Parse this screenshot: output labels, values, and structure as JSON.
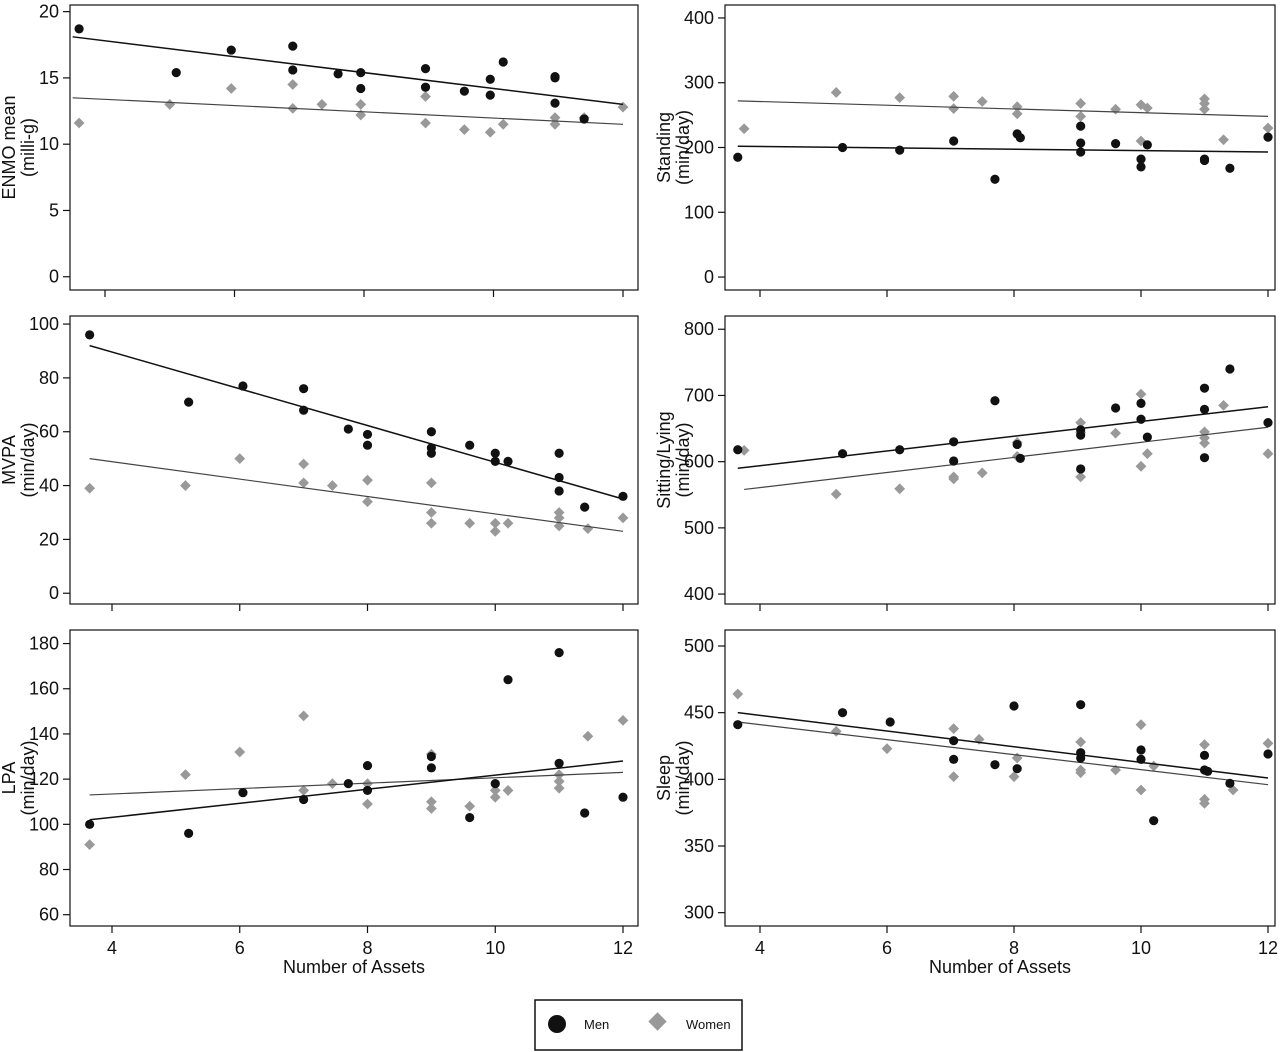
{
  "legend": {
    "items": [
      {
        "label": "Men",
        "color": "#111111",
        "marker": "circle"
      },
      {
        "label": "Women",
        "color": "#999999",
        "marker": "diamond"
      }
    ]
  },
  "chart_data": [
    {
      "type": "scatter",
      "ylabel": [
        "ENMO mean",
        "(milli-g)"
      ],
      "xlabel": "",
      "xlim": [
        3.5,
        12.1
      ],
      "ylim": [
        -1,
        20.5
      ],
      "x_ticks": [
        4,
        6,
        8,
        10,
        12
      ],
      "show_x_tick_labels": false,
      "y_ticks": [
        0,
        5,
        10,
        15,
        20
      ],
      "series": [
        {
          "name": "Men",
          "color": "#111111",
          "marker": "circle",
          "x": [
            3.6,
            5.1,
            5.95,
            6.9,
            6.9,
            7.6,
            7.95,
            7.95,
            8.95,
            8.95,
            9.55,
            9.95,
            9.95,
            10.15,
            10.95,
            10.95,
            10.95,
            11.4
          ],
          "y": [
            18.7,
            15.4,
            17.1,
            17.4,
            15.6,
            15.3,
            15.4,
            14.2,
            15.7,
            14.3,
            14.0,
            14.9,
            13.7,
            16.2,
            15.0,
            15.1,
            13.1,
            11.9
          ],
          "trend": [
            [
              3.5,
              18.1
            ],
            [
              12.0,
              13.0
            ]
          ]
        },
        {
          "name": "Women",
          "color": "#999999",
          "marker": "diamond",
          "x": [
            3.6,
            5.0,
            5.95,
            6.9,
            6.9,
            7.35,
            7.95,
            7.95,
            8.95,
            8.95,
            9.55,
            9.95,
            10.15,
            10.95,
            10.95,
            11.4,
            12.0
          ],
          "y": [
            11.6,
            13.0,
            14.2,
            14.5,
            12.7,
            13.0,
            13.0,
            12.2,
            13.6,
            11.6,
            11.1,
            10.9,
            11.5,
            11.5,
            12.0,
            12.0,
            12.8
          ],
          "trend": [
            [
              3.5,
              13.5
            ],
            [
              12.0,
              11.5
            ]
          ]
        }
      ]
    },
    {
      "type": "scatter",
      "ylabel": [
        "Standing",
        "(min/day)"
      ],
      "xlabel": "",
      "xlim": [
        3.5,
        12.1
      ],
      "ylim": [
        -20,
        420
      ],
      "x_ticks": [
        4,
        6,
        8,
        10,
        12
      ],
      "show_x_tick_labels": false,
      "y_ticks": [
        0,
        100,
        200,
        300,
        400
      ],
      "series": [
        {
          "name": "Men",
          "color": "#111111",
          "marker": "circle",
          "x": [
            3.65,
            5.3,
            6.2,
            7.05,
            7.7,
            8.05,
            8.1,
            9.05,
            9.05,
            9.05,
            9.6,
            10.0,
            10.0,
            10.1,
            11.0,
            11.0,
            11.4,
            12.0
          ],
          "y": [
            185,
            200,
            196,
            210,
            151,
            221,
            215,
            233,
            207,
            193,
            206,
            182,
            170,
            204,
            182,
            180,
            168,
            216
          ],
          "trend": [
            [
              3.65,
              202
            ],
            [
              12.0,
              193
            ]
          ]
        },
        {
          "name": "Women",
          "color": "#999999",
          "marker": "diamond",
          "x": [
            3.75,
            5.2,
            6.2,
            7.05,
            7.05,
            7.5,
            8.05,
            8.05,
            9.05,
            9.05,
            9.6,
            10.0,
            10.0,
            10.1,
            11.0,
            11.0,
            11.0,
            11.3,
            12.0
          ],
          "y": [
            229,
            285,
            277,
            279,
            260,
            271,
            263,
            252,
            268,
            248,
            259,
            266,
            210,
            261,
            275,
            268,
            259,
            212,
            230
          ],
          "trend": [
            [
              3.65,
              272
            ],
            [
              12.0,
              248
            ]
          ]
        }
      ]
    },
    {
      "type": "scatter",
      "ylabel": [
        "MVPA",
        "(min/day)"
      ],
      "xlabel": "",
      "xlim": [
        3.4,
        12.1
      ],
      "ylim": [
        -4,
        103
      ],
      "x_ticks": [
        4,
        6,
        8,
        10,
        12
      ],
      "show_x_tick_labels": false,
      "y_ticks": [
        0,
        20,
        40,
        60,
        80,
        100
      ],
      "series": [
        {
          "name": "Men",
          "color": "#111111",
          "marker": "circle",
          "x": [
            3.65,
            5.2,
            6.05,
            7.0,
            7.0,
            7.7,
            8.0,
            8.0,
            9.0,
            9.0,
            9.0,
            9.6,
            10.0,
            10.0,
            10.2,
            11.0,
            11.0,
            11.0,
            11.4,
            12.0
          ],
          "y": [
            96,
            71,
            77,
            76,
            68,
            61,
            59,
            55,
            60,
            54,
            52,
            55,
            52,
            49,
            49,
            52,
            43,
            38,
            32,
            36
          ],
          "trend": [
            [
              3.65,
              92
            ],
            [
              12.0,
              35
            ]
          ]
        },
        {
          "name": "Women",
          "color": "#999999",
          "marker": "diamond",
          "x": [
            3.65,
            5.15,
            6.0,
            7.0,
            7.0,
            7.45,
            8.0,
            8.0,
            9.0,
            9.0,
            9.0,
            9.6,
            10.0,
            10.0,
            10.2,
            11.0,
            11.0,
            11.0,
            11.45,
            12.0
          ],
          "y": [
            39,
            40,
            50,
            48,
            41,
            40,
            42,
            34,
            41,
            30,
            26,
            26,
            26,
            23,
            26,
            30,
            28,
            25,
            24,
            28
          ],
          "trend": [
            [
              3.65,
              50
            ],
            [
              12.0,
              23
            ]
          ]
        }
      ]
    },
    {
      "type": "scatter",
      "ylabel": [
        "Sitting/Lying",
        "(min/day)"
      ],
      "xlabel": "",
      "xlim": [
        3.5,
        12.05
      ],
      "ylim": [
        385,
        820
      ],
      "x_ticks": [
        4,
        6,
        8,
        10,
        12
      ],
      "show_x_tick_labels": false,
      "y_ticks": [
        400,
        500,
        600,
        700,
        800
      ],
      "series": [
        {
          "name": "Men",
          "color": "#111111",
          "marker": "circle",
          "x": [
            3.65,
            5.3,
            6.2,
            7.05,
            7.05,
            7.7,
            8.05,
            8.1,
            9.05,
            9.05,
            9.05,
            9.6,
            10.0,
            10.0,
            10.1,
            11.0,
            11.0,
            11.0,
            11.4,
            12.0
          ],
          "y": [
            618,
            612,
            618,
            630,
            601,
            692,
            626,
            605,
            640,
            648,
            589,
            681,
            688,
            664,
            637,
            711,
            679,
            606,
            740,
            659
          ],
          "trend": [
            [
              3.65,
              590
            ],
            [
              12.0,
              683
            ]
          ]
        },
        {
          "name": "Women",
          "color": "#999999",
          "marker": "diamond",
          "x": [
            3.75,
            5.2,
            6.2,
            7.05,
            7.05,
            7.5,
            8.05,
            8.05,
            9.05,
            9.05,
            9.05,
            9.6,
            10.0,
            10.0,
            10.1,
            11.0,
            11.0,
            11.0,
            11.3,
            12.0
          ],
          "y": [
            617,
            551,
            559,
            577,
            574,
            583,
            629,
            608,
            659,
            644,
            577,
            643,
            702,
            593,
            612,
            645,
            636,
            628,
            685,
            612
          ],
          "trend": [
            [
              3.75,
              558
            ],
            [
              12.0,
              652
            ]
          ]
        }
      ]
    },
    {
      "type": "scatter",
      "ylabel": [
        "LPA",
        "(min/day)"
      ],
      "xlabel": "Number of Assets",
      "xlim": [
        3.4,
        12.1
      ],
      "ylim": [
        55,
        186
      ],
      "x_ticks": [
        4,
        6,
        8,
        10,
        12
      ],
      "show_x_tick_labels": true,
      "y_ticks": [
        60,
        80,
        100,
        120,
        140,
        160,
        180
      ],
      "series": [
        {
          "name": "Men",
          "color": "#111111",
          "marker": "circle",
          "x": [
            3.65,
            5.2,
            6.05,
            7.0,
            7.7,
            8.0,
            8.0,
            9.0,
            9.0,
            9.6,
            10.0,
            10.2,
            11.0,
            11.0,
            11.4,
            12.0
          ],
          "y": [
            100,
            96,
            114,
            111,
            118,
            126,
            115,
            125,
            130,
            103,
            118,
            164,
            176,
            127,
            105,
            112
          ],
          "trend": [
            [
              3.65,
              102
            ],
            [
              12.0,
              128
            ]
          ]
        },
        {
          "name": "Women",
          "color": "#999999",
          "marker": "diamond",
          "x": [
            3.65,
            5.15,
            6.0,
            7.0,
            7.0,
            7.45,
            8.0,
            8.0,
            9.0,
            9.0,
            9.0,
            9.6,
            10.0,
            10.0,
            10.2,
            11.0,
            11.0,
            11.0,
            11.45,
            12.0
          ],
          "y": [
            91,
            122,
            132,
            148,
            115,
            118,
            118,
            109,
            131,
            110,
            107,
            108,
            115,
            112,
            115,
            122,
            119,
            116,
            139,
            146
          ],
          "trend": [
            [
              3.65,
              113
            ],
            [
              12.0,
              123
            ]
          ]
        }
      ]
    },
    {
      "type": "scatter",
      "ylabel": [
        "Sleep",
        "(min/day)"
      ],
      "xlabel": "Number of Assets",
      "xlim": [
        3.5,
        12.05
      ],
      "ylim": [
        290,
        512
      ],
      "x_ticks": [
        4,
        6,
        8,
        10,
        12
      ],
      "show_x_tick_labels": true,
      "y_ticks": [
        300,
        350,
        400,
        450,
        500
      ],
      "series": [
        {
          "name": "Men",
          "color": "#111111",
          "marker": "circle",
          "x": [
            3.65,
            5.3,
            6.05,
            7.05,
            7.05,
            7.7,
            8.0,
            8.05,
            9.05,
            9.05,
            9.05,
            10.0,
            10.0,
            10.2,
            11.0,
            11.0,
            11.05,
            11.4,
            12.0
          ],
          "y": [
            441,
            450,
            443,
            429,
            415,
            411,
            455,
            408,
            456,
            420,
            416,
            422,
            415,
            369,
            418,
            407,
            406,
            397,
            419
          ],
          "trend": [
            [
              3.65,
              450
            ],
            [
              12.0,
              401
            ]
          ]
        },
        {
          "name": "Women",
          "color": "#999999",
          "marker": "diamond",
          "x": [
            3.65,
            5.2,
            6.0,
            7.05,
            7.05,
            7.45,
            8.0,
            8.05,
            9.05,
            9.05,
            9.05,
            9.6,
            10.0,
            10.0,
            10.2,
            11.0,
            11.0,
            11.0,
            11.45,
            12.0
          ],
          "y": [
            464,
            436,
            423,
            438,
            402,
            430,
            402,
            416,
            428,
            407,
            405,
            407,
            441,
            392,
            410,
            426,
            385,
            382,
            392,
            427
          ],
          "trend": [
            [
              3.65,
              443
            ],
            [
              12.0,
              396
            ]
          ]
        }
      ]
    }
  ]
}
